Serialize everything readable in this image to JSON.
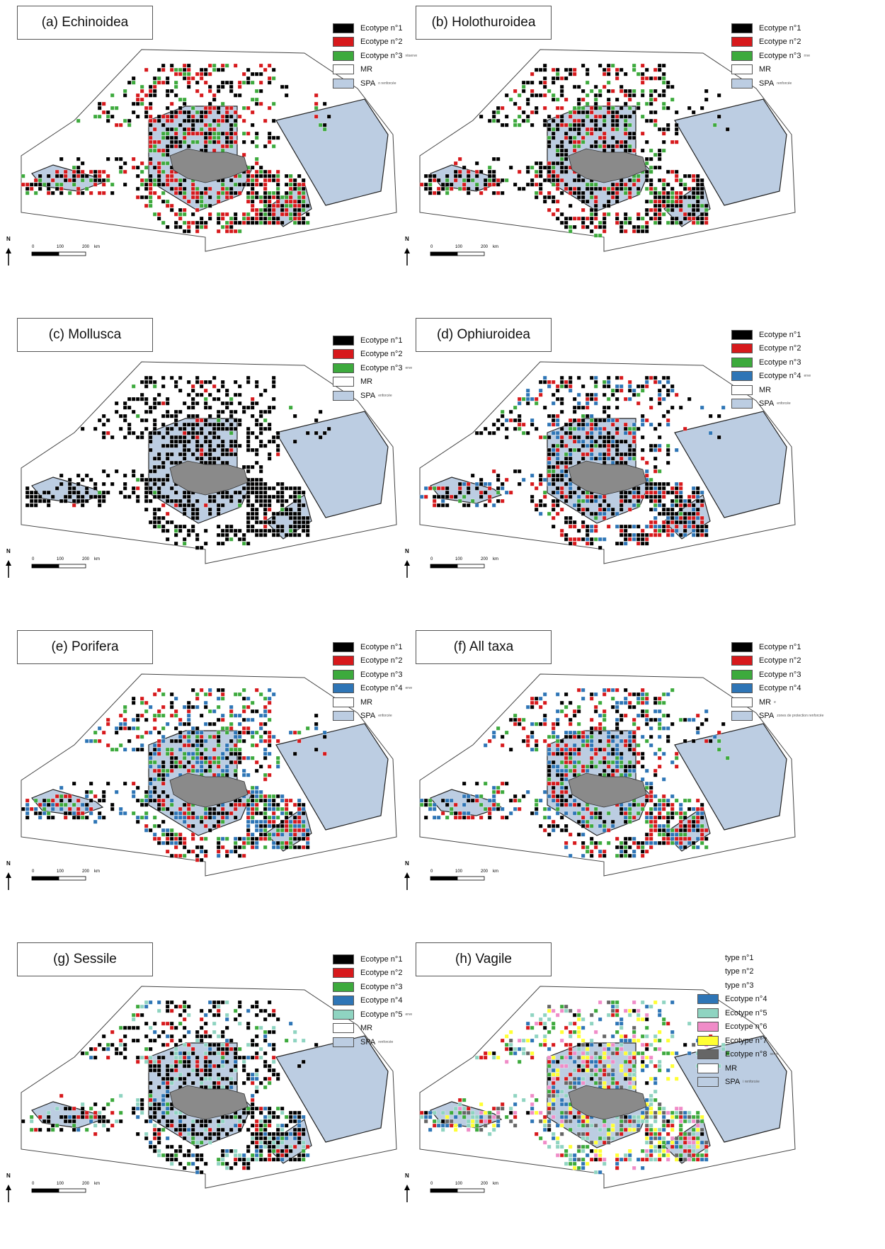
{
  "colors": {
    "ecotype_1": "#000000",
    "ecotype_2": "#d7191c",
    "ecotype_3": "#3daa3d",
    "ecotype_4": "#2e75b6",
    "ecotype_5": "#8fd4c1",
    "ecotype_6": "#f08cc8",
    "ecotype_7": "#ffff33",
    "ecotype_8": "#666666",
    "mr": "#ffffff",
    "spa": "#bccde2",
    "island": "#8a8a8a"
  },
  "scale": {
    "labels": [
      "0",
      "100",
      "200",
      "km"
    ]
  },
  "north": "N",
  "panels": [
    {
      "title": "(a) Echinoidea",
      "legend": [
        {
          "label": "Ecotype n°1",
          "color": "ecotype_1",
          "stub": ""
        },
        {
          "label": "Ecotype n°2",
          "color": "ecotype_2",
          "stub": ""
        },
        {
          "label": "Ecotype n°3",
          "color": "ecotype_3",
          "stub": "réserve"
        },
        {
          "label": "MR",
          "color": "mr",
          "stub": ""
        },
        {
          "label": "SPA",
          "color": "spa",
          "stub": "n renforcée"
        }
      ],
      "mix": [
        [
          "ecotype_1",
          0.4
        ],
        [
          "ecotype_2",
          0.38
        ],
        [
          "ecotype_3",
          0.22
        ]
      ]
    },
    {
      "title": "(b) Holothuroidea",
      "legend": [
        {
          "label": "Ecotype n°1",
          "color": "ecotype_1",
          "stub": ""
        },
        {
          "label": "Ecotype n°2",
          "color": "ecotype_2",
          "stub": ""
        },
        {
          "label": "Ecotype n°3",
          "color": "ecotype_3",
          "stub": "rrve"
        },
        {
          "label": "MR",
          "color": "mr",
          "stub": ""
        },
        {
          "label": "SPA",
          "color": "spa",
          "stub": "renforcée"
        }
      ],
      "mix": [
        [
          "ecotype_1",
          0.55
        ],
        [
          "ecotype_2",
          0.25
        ],
        [
          "ecotype_3",
          0.2
        ]
      ]
    },
    {
      "title": "(c) Mollusca",
      "legend": [
        {
          "label": "Ecotype n°1",
          "color": "ecotype_1",
          "stub": ""
        },
        {
          "label": "Ecotype n°2",
          "color": "ecotype_2",
          "stub": ""
        },
        {
          "label": "Ecotype n°3",
          "color": "ecotype_3",
          "stub": "erve"
        },
        {
          "label": "MR",
          "color": "mr",
          "stub": ""
        },
        {
          "label": "SPA",
          "color": "spa",
          "stub": "enforcée"
        }
      ],
      "mix": [
        [
          "ecotype_1",
          0.94
        ],
        [
          "ecotype_2",
          0.03
        ],
        [
          "ecotype_3",
          0.03
        ]
      ]
    },
    {
      "title": "(d) Ophiuroidea",
      "legend": [
        {
          "label": "Ecotype n°1",
          "color": "ecotype_1",
          "stub": ""
        },
        {
          "label": "Ecotype n°2",
          "color": "ecotype_2",
          "stub": ""
        },
        {
          "label": "Ecotype n°3",
          "color": "ecotype_3",
          "stub": ""
        },
        {
          "label": "Ecotype n°4",
          "color": "ecotype_4",
          "stub": "erve"
        },
        {
          "label": "MR",
          "color": "mr",
          "stub": ""
        },
        {
          "label": "SPA",
          "color": "spa",
          "stub": "enforcée"
        }
      ],
      "mix": [
        [
          "ecotype_1",
          0.5
        ],
        [
          "ecotype_2",
          0.22
        ],
        [
          "ecotype_3",
          0.08
        ],
        [
          "ecotype_4",
          0.2
        ]
      ]
    },
    {
      "title": "(e) Porifera",
      "legend": [
        {
          "label": "Ecotype n°1",
          "color": "ecotype_1",
          "stub": ""
        },
        {
          "label": "Ecotype n°2",
          "color": "ecotype_2",
          "stub": ""
        },
        {
          "label": "Ecotype n°3",
          "color": "ecotype_3",
          "stub": ""
        },
        {
          "label": "Ecotype n°4",
          "color": "ecotype_4",
          "stub": "erve"
        },
        {
          "label": "MR",
          "color": "mr",
          "stub": ""
        },
        {
          "label": "SPA",
          "color": "spa",
          "stub": "enforcée"
        }
      ],
      "mix": [
        [
          "ecotype_1",
          0.3
        ],
        [
          "ecotype_2",
          0.25
        ],
        [
          "ecotype_3",
          0.2
        ],
        [
          "ecotype_4",
          0.25
        ]
      ]
    },
    {
      "title": "(f) All taxa",
      "legend": [
        {
          "label": "Ecotype n°1",
          "color": "ecotype_1",
          "stub": ""
        },
        {
          "label": "Ecotype n°2",
          "color": "ecotype_2",
          "stub": ""
        },
        {
          "label": "Ecotype n°3",
          "color": "ecotype_3",
          "stub": ""
        },
        {
          "label": "Ecotype n°4",
          "color": "ecotype_4",
          "stub": ""
        },
        {
          "label": "MR",
          "color": "mr",
          "stub": "e"
        },
        {
          "label": "SPA",
          "color": "spa",
          "stub": "zones de protection renforcée"
        }
      ],
      "mix": [
        [
          "ecotype_1",
          0.28
        ],
        [
          "ecotype_2",
          0.27
        ],
        [
          "ecotype_3",
          0.2
        ],
        [
          "ecotype_4",
          0.25
        ]
      ]
    },
    {
      "title": "(g) Sessile",
      "legend": [
        {
          "label": "Ecotype n°1",
          "color": "ecotype_1",
          "stub": ""
        },
        {
          "label": "Ecotype n°2",
          "color": "ecotype_2",
          "stub": ""
        },
        {
          "label": "Ecotype n°3",
          "color": "ecotype_3",
          "stub": ""
        },
        {
          "label": "Ecotype n°4",
          "color": "ecotype_4",
          "stub": ""
        },
        {
          "label": "Ecotype n°5",
          "color": "ecotype_5",
          "stub": "erve"
        },
        {
          "label": "MR",
          "color": "mr",
          "stub": ""
        },
        {
          "label": "SPA",
          "color": "spa",
          "stub": "renforcée"
        }
      ],
      "mix": [
        [
          "ecotype_1",
          0.55
        ],
        [
          "ecotype_2",
          0.12
        ],
        [
          "ecotype_3",
          0.1
        ],
        [
          "ecotype_4",
          0.08
        ],
        [
          "ecotype_5",
          0.15
        ]
      ]
    },
    {
      "title": "(h) Vagile",
      "legend": [
        {
          "label": "type n°1",
          "color": "",
          "stub": ""
        },
        {
          "label": "type n°2",
          "color": "",
          "stub": ""
        },
        {
          "label": "type n°3",
          "color": "",
          "stub": ""
        },
        {
          "label": "Ecotype n°4",
          "color": "ecotype_4",
          "stub": ""
        },
        {
          "label": "Ecotype n°5",
          "color": "ecotype_5",
          "stub": ""
        },
        {
          "label": "Ecotype n°6",
          "color": "ecotype_6",
          "stub": ""
        },
        {
          "label": "Ecotype n°7",
          "color": "ecotype_7",
          "stub": ""
        },
        {
          "label": "Ecotype n°8",
          "color": "ecotype_8",
          "stub": "serve"
        },
        {
          "label": "MR",
          "color": "mr",
          "stub": ""
        },
        {
          "label": "SPA",
          "color": "spa",
          "stub": "i renforcée"
        }
      ],
      "mix": [
        [
          "ecotype_1",
          0.06
        ],
        [
          "ecotype_2",
          0.14
        ],
        [
          "ecotype_3",
          0.12
        ],
        [
          "ecotype_4",
          0.14
        ],
        [
          "ecotype_5",
          0.16
        ],
        [
          "ecotype_6",
          0.12
        ],
        [
          "ecotype_7",
          0.16
        ],
        [
          "ecotype_8",
          0.1
        ]
      ]
    }
  ]
}
